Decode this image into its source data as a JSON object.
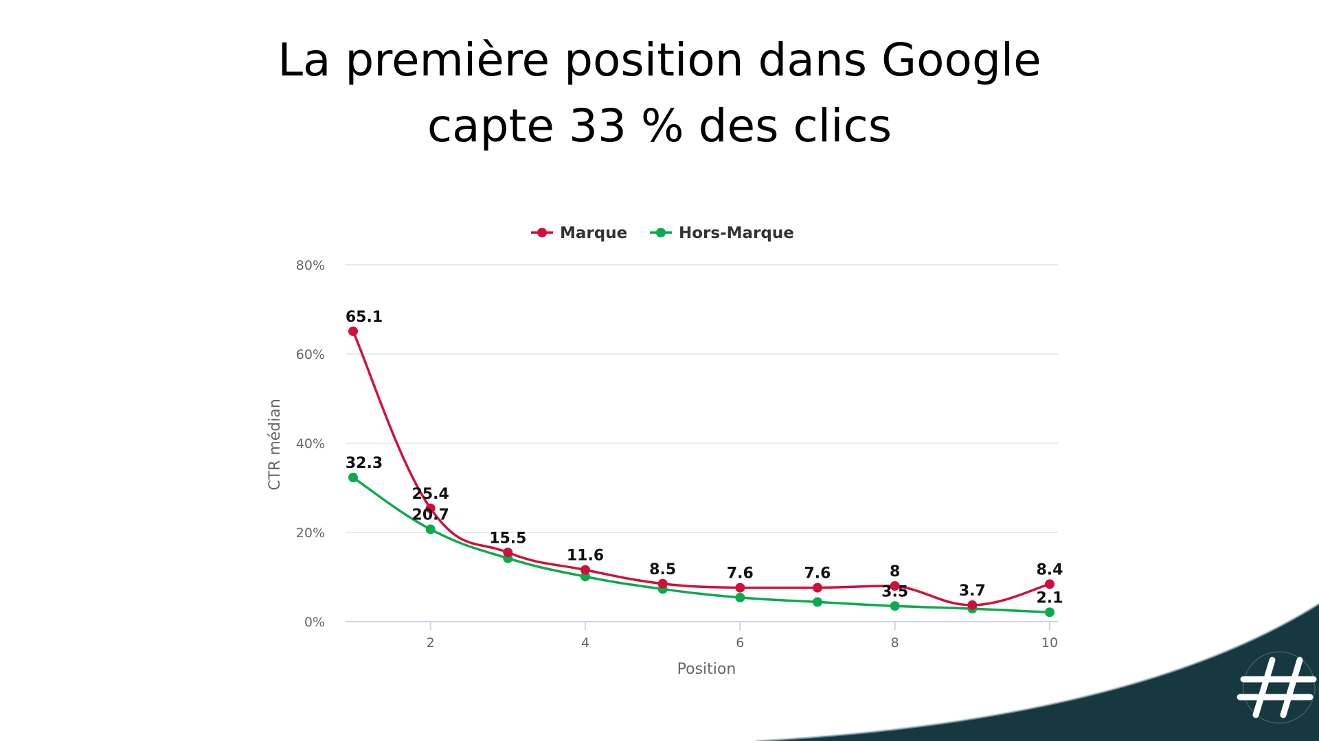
{
  "title_lines": [
    "La première position dans Google",
    "capte 33 % des clics"
  ],
  "colors": {
    "marque": "#d0103a",
    "hors_marque": "#0aab4e",
    "grid": "#e3e3e3",
    "axis": "#c9d3e2",
    "swoosh_dark": "#163840"
  },
  "chart_data": {
    "type": "line",
    "x": [
      1,
      2,
      3,
      4,
      5,
      6,
      7,
      8,
      9,
      10
    ],
    "xlabel": "Position",
    "ylabel": "CTR médian",
    "xlim": [
      1,
      10
    ],
    "ylim": [
      0,
      80
    ],
    "x_ticks": [
      2,
      4,
      6,
      8,
      10
    ],
    "y_ticks": [
      0,
      20,
      40,
      60,
      80
    ],
    "y_tick_labels": [
      "0%",
      "20%",
      "40%",
      "60%",
      "80%"
    ],
    "grid": true,
    "legend_position": "top-center",
    "series": [
      {
        "name": "Marque",
        "color": "#d0103a",
        "values": [
          65.1,
          25.4,
          15.5,
          11.6,
          8.5,
          7.6,
          7.6,
          8,
          3.7,
          8.4
        ],
        "labels": [
          "65.1",
          "25.4",
          "15.5",
          "11.6",
          "8.5",
          "7.6",
          "7.6",
          "8",
          "3.7",
          "8.4"
        ]
      },
      {
        "name": "Hors-Marque",
        "color": "#0aab4e",
        "values": [
          32.3,
          20.7,
          14.2,
          10.1,
          7.3,
          5.4,
          4.4,
          3.5,
          2.9,
          2.1
        ],
        "labels": [
          "32.3",
          "20.7",
          "",
          "",
          "",
          "",
          "",
          "3.5",
          "",
          "2.1"
        ]
      }
    ]
  }
}
